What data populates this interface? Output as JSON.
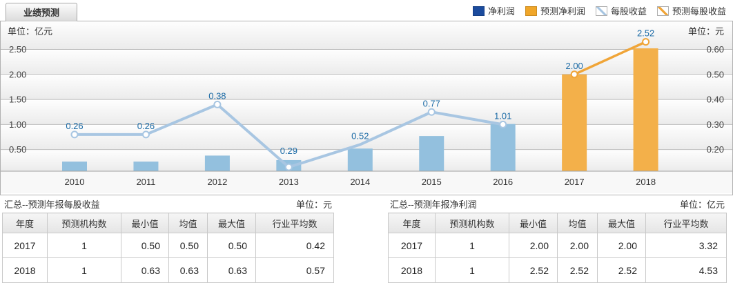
{
  "tab": {
    "label": "业绩预测"
  },
  "legend": [
    {
      "label": "净利润",
      "type": "bar",
      "color": "#1b4b9d"
    },
    {
      "label": "预测净利润",
      "type": "bar",
      "color": "#f0a629"
    },
    {
      "label": "每股收益",
      "type": "line",
      "color": "#a8c6e2"
    },
    {
      "label": "预测每股收益",
      "type": "line",
      "color": "#f0a538"
    }
  ],
  "chart_data": {
    "type": "bar",
    "subtype": "dual-axis bar + line combo",
    "categories": [
      "2010",
      "2011",
      "2012",
      "2013",
      "2014",
      "2015",
      "2016",
      "2017",
      "2018"
    ],
    "left_axis": {
      "unit": "单位：亿元",
      "ticks": [
        0.5,
        1.0,
        1.5,
        2.0,
        2.5
      ],
      "range": [
        0,
        2.75
      ]
    },
    "right_axis": {
      "unit": "单位：元",
      "ticks": [
        0.2,
        0.3,
        0.4,
        0.5,
        0.6
      ],
      "range": [
        0.1,
        0.65
      ]
    },
    "grid": "horizontal",
    "legend_position": "top-right",
    "series": [
      {
        "name": "净利润",
        "type": "bar",
        "axis": "left",
        "color": "#93c0de",
        "values": [
          0.26,
          0.26,
          0.38,
          0.29,
          0.52,
          0.77,
          1.01,
          null,
          null
        ]
      },
      {
        "name": "预测净利润",
        "type": "bar",
        "axis": "left",
        "color": "#f3b04a",
        "values": [
          null,
          null,
          null,
          null,
          null,
          null,
          null,
          2.0,
          2.52
        ]
      },
      {
        "name": "每股收益",
        "type": "line",
        "axis": "right",
        "color": "#a8c6e2",
        "values": [
          0.26,
          0.26,
          0.38,
          0.13,
          0.22,
          0.35,
          0.3,
          null,
          null
        ],
        "marker_gaps": [
          "2014"
        ]
      },
      {
        "name": "预测每股收益",
        "type": "line",
        "axis": "right",
        "color": "#f0a538",
        "values": [
          null,
          null,
          null,
          null,
          null,
          null,
          null,
          0.5,
          0.63
        ],
        "marker_gaps": []
      }
    ],
    "bar_labels": {
      "2010": "0.26",
      "2011": "0.26",
      "2012": "0.38",
      "2013": "0.29",
      "2014": "0.52",
      "2015": "0.77",
      "2016": "1.01",
      "2017": "2.00",
      "2018": "2.52"
    },
    "label_color": "#1c6ba6"
  },
  "tables": {
    "eps": {
      "title": "汇总--预测年报每股收益",
      "unit": "单位：元",
      "headers": [
        "年度",
        "预测机构数",
        "最小值",
        "均值",
        "最大值",
        "行业平均数"
      ],
      "rows": [
        [
          "2017",
          "1",
          "0.50",
          "0.50",
          "0.50",
          "0.42"
        ],
        [
          "2018",
          "1",
          "0.63",
          "0.63",
          "0.63",
          "0.57"
        ]
      ]
    },
    "net_profit": {
      "title": "汇总--预测年报净利润",
      "unit": "单位：亿元",
      "headers": [
        "年度",
        "预测机构数",
        "最小值",
        "均值",
        "最大值",
        "行业平均数"
      ],
      "rows": [
        [
          "2017",
          "1",
          "2.00",
          "2.00",
          "2.00",
          "3.32"
        ],
        [
          "2018",
          "1",
          "2.52",
          "2.52",
          "2.52",
          "4.53"
        ]
      ]
    }
  }
}
